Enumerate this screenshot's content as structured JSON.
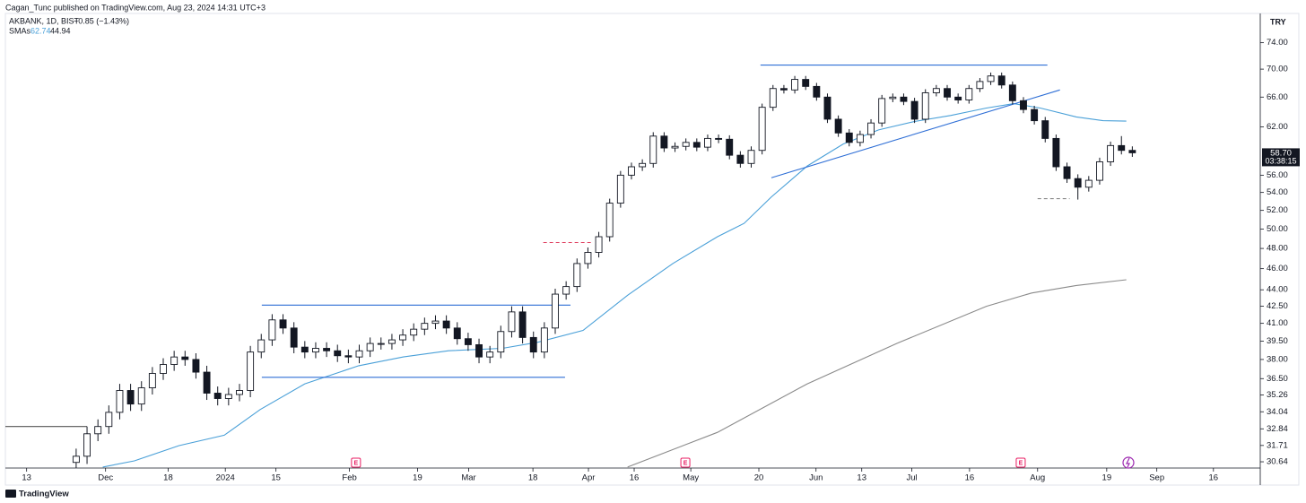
{
  "header": {
    "publisher": "Cagan_Tunc published on TradingView.com, Aug 23, 2024 14:31 UTC+3",
    "symbol": "AKBANK, 1D, BIST",
    "change": "−0.85 (−1.43%)",
    "indicator": "SMAs",
    "currency": "TRY",
    "countdown": "03:38:15"
  },
  "footer": {
    "brand": "TradingView"
  },
  "chart_data": {
    "type": "candlestick",
    "log_scale": true,
    "x": [
      0,
      2,
      4,
      6,
      8,
      10,
      12,
      14,
      16,
      18,
      20,
      22,
      24,
      26,
      28,
      30,
      32,
      34,
      36,
      38,
      40,
      42,
      44,
      46,
      48,
      50,
      52,
      54,
      56,
      58,
      60,
      62,
      64,
      66,
      68,
      70,
      72,
      74,
      76,
      78,
      80,
      82,
      84,
      86,
      88,
      90,
      92,
      94,
      96,
      98,
      100,
      102,
      104,
      106,
      108,
      110,
      112,
      114,
      116,
      118,
      120,
      122,
      124,
      126,
      128,
      130,
      132,
      134,
      136,
      138,
      140,
      142,
      144,
      146,
      148,
      150,
      152,
      154,
      156,
      158,
      160,
      162,
      164,
      166,
      168,
      170,
      172,
      174,
      176,
      178,
      180,
      182,
      184,
      186,
      188,
      190,
      192,
      194
    ],
    "open": [
      30.6,
      31.0,
      32.5,
      33.0,
      34.0,
      35.6,
      34.6,
      35.8,
      36.9,
      37.6,
      38.2,
      38.0,
      37.0,
      35.4,
      35.0,
      35.3,
      35.6,
      38.6,
      39.6,
      41.3,
      40.6,
      39.0,
      38.6,
      38.9,
      38.7,
      38.3,
      38.2,
      38.7,
      39.3,
      39.3,
      39.6,
      40.0,
      40.5,
      41.0,
      41.2,
      40.6,
      39.7,
      39.2,
      38.2,
      38.6,
      40.3,
      42.0,
      39.8,
      38.6,
      40.6,
      43.6,
      44.3,
      46.5,
      47.6,
      49.2,
      52.8,
      56.0,
      57.0,
      57.4,
      60.8,
      59.3,
      59.5,
      60.0,
      59.4,
      60.5,
      60.4,
      58.4,
      57.4,
      59.0,
      64.6,
      67.2,
      67.0,
      68.5,
      67.5,
      66.0,
      63.0,
      61.2,
      60.0,
      61.0,
      62.5,
      65.8,
      66.0,
      65.4,
      63.0,
      66.6,
      67.2,
      66.0,
      65.6,
      67.2,
      68.2,
      69.0,
      67.7,
      65.5,
      64.3,
      62.8,
      60.5,
      57.0,
      55.6,
      54.6,
      55.4,
      57.6,
      59.6,
      59.0
    ],
    "high": [
      31.5,
      33.0,
      33.5,
      34.5,
      36.1,
      36.1,
      36.3,
      37.4,
      38.1,
      38.7,
      38.7,
      38.5,
      37.5,
      35.9,
      35.8,
      36.1,
      39.1,
      40.1,
      41.8,
      41.8,
      41.1,
      39.5,
      39.4,
      39.4,
      39.2,
      38.8,
      39.2,
      39.8,
      39.8,
      40.1,
      40.5,
      41.0,
      41.5,
      41.7,
      41.7,
      41.1,
      40.2,
      39.7,
      39.1,
      40.8,
      42.5,
      42.5,
      40.3,
      41.1,
      44.1,
      44.8,
      47.0,
      48.1,
      49.7,
      53.3,
      56.5,
      57.5,
      57.9,
      61.3,
      61.3,
      60.0,
      60.5,
      60.5,
      61.0,
      61.0,
      60.9,
      58.9,
      59.5,
      65.1,
      67.7,
      67.7,
      69.0,
      69.0,
      68.0,
      66.5,
      63.5,
      61.7,
      61.5,
      63.0,
      66.3,
      66.5,
      66.5,
      65.9,
      67.1,
      67.7,
      67.7,
      66.5,
      67.7,
      68.7,
      69.5,
      69.5,
      68.2,
      66.0,
      64.8,
      63.3,
      61.0,
      57.5,
      56.1,
      55.9,
      58.1,
      60.1,
      60.8,
      59.5
    ],
    "low": [
      30.1,
      30.5,
      32.0,
      32.5,
      33.5,
      34.1,
      34.1,
      35.3,
      36.4,
      37.1,
      37.5,
      36.5,
      34.9,
      34.5,
      34.5,
      34.8,
      35.1,
      38.1,
      39.1,
      40.1,
      38.5,
      38.1,
      38.1,
      38.2,
      37.8,
      37.7,
      37.7,
      38.2,
      38.8,
      38.8,
      39.1,
      39.5,
      40.0,
      40.5,
      40.1,
      39.2,
      38.7,
      37.7,
      37.7,
      38.1,
      39.8,
      39.3,
      38.1,
      38.1,
      40.1,
      43.1,
      43.8,
      46.0,
      47.1,
      48.7,
      52.3,
      55.5,
      56.5,
      56.9,
      58.8,
      58.8,
      59.0,
      58.9,
      58.9,
      59.9,
      57.9,
      56.9,
      56.9,
      58.5,
      64.1,
      66.5,
      66.5,
      67.0,
      65.5,
      62.5,
      60.7,
      59.5,
      59.5,
      60.5,
      62.0,
      65.3,
      64.9,
      62.5,
      62.5,
      66.1,
      65.5,
      65.1,
      65.1,
      66.7,
      67.7,
      67.2,
      65.0,
      63.8,
      62.3,
      60.0,
      56.5,
      55.1,
      53.2,
      54.1,
      54.9,
      57.1,
      58.5,
      58.2
    ],
    "close": [
      31.0,
      32.5,
      33.0,
      34.0,
      35.6,
      34.6,
      35.8,
      36.9,
      37.6,
      38.2,
      38.0,
      37.0,
      35.4,
      35.0,
      35.3,
      35.6,
      38.6,
      39.6,
      41.3,
      40.6,
      39.0,
      38.6,
      38.9,
      38.7,
      38.3,
      38.2,
      38.7,
      39.3,
      39.3,
      39.6,
      40.0,
      40.5,
      41.0,
      41.2,
      40.6,
      39.7,
      39.2,
      38.2,
      38.6,
      40.3,
      42.0,
      39.8,
      38.6,
      40.6,
      43.6,
      44.3,
      46.5,
      47.6,
      49.2,
      52.8,
      56.0,
      57.0,
      57.4,
      60.8,
      59.3,
      59.5,
      60.0,
      59.4,
      60.5,
      60.4,
      58.4,
      57.4,
      59.0,
      64.6,
      67.2,
      67.0,
      68.5,
      67.5,
      66.0,
      63.0,
      61.2,
      60.0,
      61.0,
      62.5,
      65.8,
      66.0,
      65.4,
      63.0,
      66.6,
      67.2,
      66.0,
      65.6,
      67.2,
      68.2,
      69.0,
      67.7,
      65.5,
      64.3,
      62.8,
      60.5,
      57.0,
      55.6,
      54.6,
      55.4,
      57.6,
      59.6,
      59.0,
      58.7
    ],
    "up_color": "#ffffff",
    "down_color": "#131722",
    "series": [
      {
        "name": "SMA 50",
        "color": "#4aa0d8",
        "x": [
          4.9,
          10.7,
          18.9,
          27.2,
          33.8,
          42.0,
          51.9,
          60.1,
          68.4,
          78.3,
          84.8,
          93.1,
          101.3,
          109.6,
          117.8,
          122.7,
          127.7,
          134.3,
          140.9,
          147.4,
          154.0,
          160.6,
          167.2,
          172.2,
          177.1,
          183.7,
          188.6,
          192.9
        ],
        "values": [
          30.3,
          30.7,
          31.7,
          32.4,
          34.2,
          36.1,
          37.5,
          38.2,
          38.7,
          38.9,
          39.4,
          40.4,
          43.5,
          46.5,
          49.2,
          50.6,
          53.5,
          57.1,
          59.8,
          61.6,
          62.7,
          63.5,
          64.5,
          65.1,
          64.5,
          63.3,
          62.8,
          62.74
        ]
      },
      {
        "name": "SMA 200",
        "color": "#8a8a8a",
        "x": [
          101.3,
          117.8,
          134.3,
          150.7,
          167.2,
          175.5,
          183.7,
          192.9
        ],
        "values": [
          30.3,
          32.6,
          36.1,
          39.3,
          42.5,
          43.7,
          44.4,
          44.94
        ]
      }
    ],
    "drawings": [
      {
        "x": [
          34.1,
          90.8
        ],
        "y": [
          42.6,
          42.6
        ],
        "color": "#2f6fd6",
        "dash": false
      },
      {
        "x": [
          34.1,
          89.8
        ],
        "y": [
          36.6,
          36.6
        ],
        "color": "#2f6fd6",
        "dash": false
      },
      {
        "x": [
          125.7,
          178.4
        ],
        "y": [
          70.6,
          70.6
        ],
        "color": "#2f6fd6",
        "dash": false
      },
      {
        "x": [
          127.7,
          180.7
        ],
        "y": [
          55.7,
          67.0
        ],
        "color": "#2f6fd6",
        "dash": false
      },
      {
        "x": [
          85.8,
          94.7
        ],
        "y": [
          48.6,
          48.6
        ],
        "color": "#e04060",
        "dash": true
      },
      {
        "x": [
          176.6,
          182.5
        ],
        "y": [
          53.3,
          53.3
        ],
        "color": "#888888",
        "dash": true
      },
      {
        "x": [
          -13.0,
          2.0
        ],
        "y": [
          33.0,
          33.0
        ],
        "color": "#555555",
        "dash": false
      }
    ],
    "events": [
      {
        "x": 51.4,
        "label": "E"
      },
      {
        "x": 111.9,
        "label": "E"
      },
      {
        "x": 173.5,
        "label": "E"
      }
    ],
    "last_price": {
      "value": 58.7,
      "label": "58.70"
    },
    "xlim": [
      -13.0,
      217.5
    ],
    "xticks": [
      {
        "value": -9.1,
        "label": "13"
      },
      {
        "value": 5.4,
        "label": "Dec"
      },
      {
        "value": 16.9,
        "label": "18"
      },
      {
        "value": 27.4,
        "label": "2024"
      },
      {
        "value": 36.7,
        "label": "15"
      },
      {
        "value": 50.2,
        "label": "Feb"
      },
      {
        "value": 62.7,
        "label": "19"
      },
      {
        "value": 72.1,
        "label": "Mar"
      },
      {
        "value": 83.9,
        "label": "18"
      },
      {
        "value": 94.1,
        "label": "Apr"
      },
      {
        "value": 102.5,
        "label": "16"
      },
      {
        "value": 112.9,
        "label": "May"
      },
      {
        "value": 125.4,
        "label": "20"
      },
      {
        "value": 135.9,
        "label": "Jun"
      },
      {
        "value": 144.3,
        "label": "13"
      },
      {
        "value": 153.5,
        "label": "Jul"
      },
      {
        "value": 164.1,
        "label": "16"
      },
      {
        "value": 176.6,
        "label": "Aug"
      },
      {
        "value": 189.3,
        "label": "19"
      },
      {
        "value": 198.5,
        "label": "Sep"
      },
      {
        "value": 208.9,
        "label": "16"
      }
    ],
    "ylim": [
      30.24,
      78.7
    ],
    "yticks": [
      {
        "value": 74,
        "label": "74.00"
      },
      {
        "value": 70,
        "label": "70.00"
      },
      {
        "value": 66,
        "label": "66.00"
      },
      {
        "value": 62,
        "label": "62.00"
      },
      {
        "value": 56,
        "label": "56.00"
      },
      {
        "value": 54,
        "label": "54.00"
      },
      {
        "value": 52,
        "label": "52.00"
      },
      {
        "value": 50,
        "label": "50.00"
      },
      {
        "value": 48,
        "label": "48.00"
      },
      {
        "value": 46,
        "label": "46.00"
      },
      {
        "value": 44,
        "label": "44.00"
      },
      {
        "value": 42.5,
        "label": "42.50"
      },
      {
        "value": 41,
        "label": "41.00"
      },
      {
        "value": 39.5,
        "label": "39.50"
      },
      {
        "value": 38,
        "label": "38.00"
      },
      {
        "value": 36.5,
        "label": "36.50"
      },
      {
        "value": 35.26,
        "label": "35.26"
      },
      {
        "value": 34.04,
        "label": "34.04"
      },
      {
        "value": 32.84,
        "label": "32.84"
      },
      {
        "value": 31.71,
        "label": "31.71"
      },
      {
        "value": 30.64,
        "label": "30.64"
      }
    ],
    "grid": false
  }
}
